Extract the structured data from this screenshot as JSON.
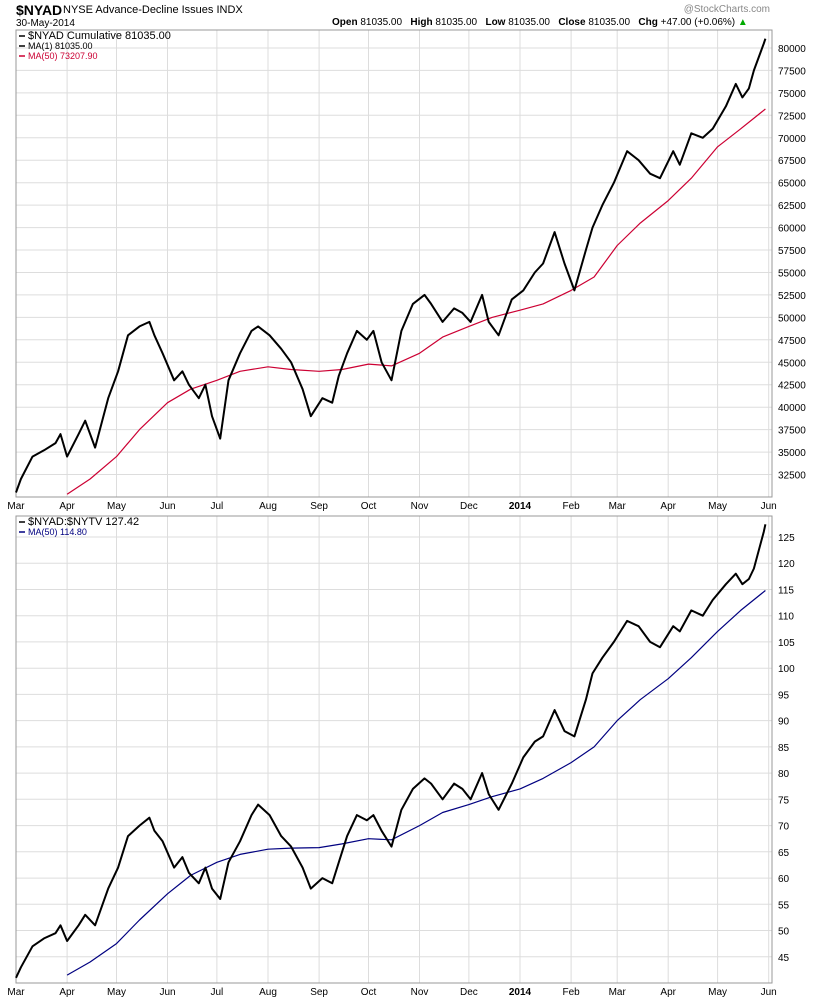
{
  "header": {
    "symbol": "$NYAD",
    "name": "NYSE Advance-Decline Issues",
    "exchange": "INDX",
    "date": "30-May-2014",
    "watermark": "@StockCharts.com",
    "open_label": "Open",
    "open_value": "81035.00",
    "high_label": "High",
    "high_value": "81035.00",
    "low_label": "Low",
    "low_value": "81035.00",
    "close_label": "Close",
    "close_value": "81035.00",
    "chg_label": "Chg",
    "chg_value": "+47.00 (+0.06%)",
    "chg_arrow": "▲"
  },
  "x_axis_labels": [
    "Mar",
    "Apr",
    "May",
    "Jun",
    "Jul",
    "Aug",
    "Sep",
    "Oct",
    "Nov",
    "Dec",
    "2014",
    "Feb",
    "Mar",
    "Apr",
    "May",
    "Jun"
  ],
  "colors": {
    "price": "#000000",
    "ma_top": "#cc0033",
    "ma_bottom": "#000080",
    "grid": "#dddddd",
    "chg_arrow": "#00aa00"
  },
  "chart_data": [
    {
      "type": "line",
      "legend": [
        "$NYAD Cumulative 81035.00",
        "MA(1) 81035.00",
        "MA(50) 73207.90"
      ],
      "ylim": [
        30000,
        82000
      ],
      "y_ticks": [
        32500,
        35000,
        37500,
        40000,
        42500,
        45000,
        47500,
        50000,
        52500,
        55000,
        57500,
        60000,
        62500,
        65000,
        67500,
        70000,
        72500,
        75000,
        77500,
        80000
      ],
      "x_range": [
        "2013-03-01",
        "2014-06-03"
      ],
      "series": [
        {
          "name": "$NYAD Cumulative",
          "points": [
            [
              "2013-03-01",
              30500
            ],
            [
              "2013-03-04",
              32000
            ],
            [
              "2013-03-11",
              34500
            ],
            [
              "2013-03-18",
              35200
            ],
            [
              "2013-03-25",
              36000
            ],
            [
              "2013-03-28",
              37000
            ],
            [
              "2013-04-01",
              34500
            ],
            [
              "2013-04-08",
              37000
            ],
            [
              "2013-04-12",
              38500
            ],
            [
              "2013-04-18",
              35500
            ],
            [
              "2013-04-26",
              41000
            ],
            [
              "2013-05-02",
              44000
            ],
            [
              "2013-05-08",
              48000
            ],
            [
              "2013-05-15",
              49000
            ],
            [
              "2013-05-21",
              49500
            ],
            [
              "2013-05-24",
              48000
            ],
            [
              "2013-05-29",
              46000
            ],
            [
              "2013-06-05",
              43000
            ],
            [
              "2013-06-10",
              44000
            ],
            [
              "2013-06-14",
              42500
            ],
            [
              "2013-06-20",
              41000
            ],
            [
              "2013-06-24",
              42500
            ],
            [
              "2013-06-28",
              39000
            ],
            [
              "2013-07-03",
              36500
            ],
            [
              "2013-07-08",
              43000
            ],
            [
              "2013-07-15",
              46000
            ],
            [
              "2013-07-22",
              48500
            ],
            [
              "2013-07-26",
              49000
            ],
            [
              "2013-08-02",
              48000
            ],
            [
              "2013-08-09",
              46500
            ],
            [
              "2013-08-15",
              45000
            ],
            [
              "2013-08-22",
              42000
            ],
            [
              "2013-08-27",
              39000
            ],
            [
              "2013-09-03",
              41000
            ],
            [
              "2013-09-09",
              40500
            ],
            [
              "2013-09-13",
              43500
            ],
            [
              "2013-09-18",
              46000
            ],
            [
              "2013-09-24",
              48500
            ],
            [
              "2013-09-30",
              47500
            ],
            [
              "2013-10-04",
              48500
            ],
            [
              "2013-10-09",
              45000
            ],
            [
              "2013-10-15",
              43000
            ],
            [
              "2013-10-21",
              48500
            ],
            [
              "2013-10-28",
              51500
            ],
            [
              "2013-11-04",
              52500
            ],
            [
              "2013-11-08",
              51500
            ],
            [
              "2013-11-15",
              49500
            ],
            [
              "2013-11-22",
              51000
            ],
            [
              "2013-11-27",
              50500
            ],
            [
              "2013-12-02",
              49500
            ],
            [
              "2013-12-09",
              52500
            ],
            [
              "2013-12-13",
              49500
            ],
            [
              "2013-12-19",
              48000
            ],
            [
              "2013-12-27",
              52000
            ],
            [
              "2014-01-03",
              53000
            ],
            [
              "2014-01-10",
              55000
            ],
            [
              "2014-01-15",
              56000
            ],
            [
              "2014-01-22",
              59500
            ],
            [
              "2014-01-28",
              56000
            ],
            [
              "2014-02-03",
              53000
            ],
            [
              "2014-02-10",
              57500
            ],
            [
              "2014-02-14",
              60000
            ],
            [
              "2014-02-20",
              62500
            ],
            [
              "2014-02-27",
              65000
            ],
            [
              "2014-03-07",
              68500
            ],
            [
              "2014-03-14",
              67500
            ],
            [
              "2014-03-21",
              66000
            ],
            [
              "2014-03-27",
              65500
            ],
            [
              "2014-04-04",
              68500
            ],
            [
              "2014-04-08",
              67000
            ],
            [
              "2014-04-15",
              70500
            ],
            [
              "2014-04-22",
              70000
            ],
            [
              "2014-04-28",
              71000
            ],
            [
              "2014-05-06",
              73500
            ],
            [
              "2014-05-12",
              76000
            ],
            [
              "2014-05-16",
              74500
            ],
            [
              "2014-05-20",
              75500
            ],
            [
              "2014-05-23",
              77500
            ],
            [
              "2014-05-29",
              80500
            ],
            [
              "2014-05-30",
              81035
            ]
          ]
        },
        {
          "name": "MA(50)",
          "points": [
            [
              "2013-04-01",
              30300
            ],
            [
              "2013-04-15",
              32000
            ],
            [
              "2013-05-01",
              34500
            ],
            [
              "2013-05-15",
              37500
            ],
            [
              "2013-06-01",
              40500
            ],
            [
              "2013-06-15",
              42000
            ],
            [
              "2013-07-01",
              43000
            ],
            [
              "2013-07-15",
              44000
            ],
            [
              "2013-08-01",
              44500
            ],
            [
              "2013-08-15",
              44200
            ],
            [
              "2013-09-01",
              44000
            ],
            [
              "2013-09-15",
              44200
            ],
            [
              "2013-10-01",
              44800
            ],
            [
              "2013-10-15",
              44600
            ],
            [
              "2013-11-01",
              46000
            ],
            [
              "2013-11-15",
              47800
            ],
            [
              "2013-12-01",
              49000
            ],
            [
              "2013-12-15",
              50000
            ],
            [
              "2014-01-01",
              50800
            ],
            [
              "2014-01-15",
              51500
            ],
            [
              "2014-02-01",
              53000
            ],
            [
              "2014-02-15",
              54500
            ],
            [
              "2014-03-01",
              58000
            ],
            [
              "2014-03-15",
              60500
            ],
            [
              "2014-04-01",
              63000
            ],
            [
              "2014-04-15",
              65500
            ],
            [
              "2014-05-01",
              69000
            ],
            [
              "2014-05-15",
              71000
            ],
            [
              "2014-05-30",
              73208
            ]
          ]
        }
      ]
    },
    {
      "type": "line",
      "legend": [
        "$NYAD:$NYTV 127.42",
        "MA(50) 114.80"
      ],
      "ylim": [
        40,
        129
      ],
      "y_ticks": [
        45,
        50,
        55,
        60,
        65,
        70,
        75,
        80,
        85,
        90,
        95,
        100,
        105,
        110,
        115,
        120,
        125
      ],
      "x_range": [
        "2013-03-01",
        "2014-06-03"
      ],
      "series": [
        {
          "name": "$NYAD:$NYTV",
          "points": [
            [
              "2013-03-01",
              41
            ],
            [
              "2013-03-04",
              43
            ],
            [
              "2013-03-11",
              47
            ],
            [
              "2013-03-18",
              48.5
            ],
            [
              "2013-03-25",
              49.5
            ],
            [
              "2013-03-28",
              51
            ],
            [
              "2013-04-01",
              48
            ],
            [
              "2013-04-08",
              51
            ],
            [
              "2013-04-12",
              53
            ],
            [
              "2013-04-18",
              51
            ],
            [
              "2013-04-26",
              58
            ],
            [
              "2013-05-02",
              62
            ],
            [
              "2013-05-08",
              68
            ],
            [
              "2013-05-15",
              70
            ],
            [
              "2013-05-21",
              71.5
            ],
            [
              "2013-05-24",
              69
            ],
            [
              "2013-05-29",
              67
            ],
            [
              "2013-06-05",
              62
            ],
            [
              "2013-06-10",
              64
            ],
            [
              "2013-06-14",
              61
            ],
            [
              "2013-06-20",
              59
            ],
            [
              "2013-06-24",
              62
            ],
            [
              "2013-06-28",
              58
            ],
            [
              "2013-07-03",
              56
            ],
            [
              "2013-07-08",
              63
            ],
            [
              "2013-07-15",
              67
            ],
            [
              "2013-07-22",
              72
            ],
            [
              "2013-07-26",
              74
            ],
            [
              "2013-08-02",
              72
            ],
            [
              "2013-08-09",
              68
            ],
            [
              "2013-08-15",
              66
            ],
            [
              "2013-08-22",
              62
            ],
            [
              "2013-08-27",
              58
            ],
            [
              "2013-09-03",
              60
            ],
            [
              "2013-09-09",
              59
            ],
            [
              "2013-09-13",
              63
            ],
            [
              "2013-09-18",
              68
            ],
            [
              "2013-09-24",
              72
            ],
            [
              "2013-09-30",
              71
            ],
            [
              "2013-10-04",
              72
            ],
            [
              "2013-10-09",
              69
            ],
            [
              "2013-10-15",
              66
            ],
            [
              "2013-10-21",
              73
            ],
            [
              "2013-10-28",
              77
            ],
            [
              "2013-11-04",
              79
            ],
            [
              "2013-11-08",
              78
            ],
            [
              "2013-11-15",
              75
            ],
            [
              "2013-11-22",
              78
            ],
            [
              "2013-11-27",
              77
            ],
            [
              "2013-12-02",
              75
            ],
            [
              "2013-12-09",
              80
            ],
            [
              "2013-12-13",
              76
            ],
            [
              "2013-12-19",
              73
            ],
            [
              "2013-12-27",
              78
            ],
            [
              "2014-01-03",
              83
            ],
            [
              "2014-01-10",
              86
            ],
            [
              "2014-01-15",
              87
            ],
            [
              "2014-01-22",
              92
            ],
            [
              "2014-01-28",
              88
            ],
            [
              "2014-02-03",
              87
            ],
            [
              "2014-02-10",
              94
            ],
            [
              "2014-02-14",
              99
            ],
            [
              "2014-02-20",
              102
            ],
            [
              "2014-02-27",
              105
            ],
            [
              "2014-03-07",
              109
            ],
            [
              "2014-03-14",
              108
            ],
            [
              "2014-03-21",
              105
            ],
            [
              "2014-03-27",
              104
            ],
            [
              "2014-04-04",
              108
            ],
            [
              "2014-04-08",
              107
            ],
            [
              "2014-04-15",
              111
            ],
            [
              "2014-04-22",
              110
            ],
            [
              "2014-04-28",
              113
            ],
            [
              "2014-05-06",
              116
            ],
            [
              "2014-05-12",
              118
            ],
            [
              "2014-05-16",
              116
            ],
            [
              "2014-05-20",
              117
            ],
            [
              "2014-05-23",
              119
            ],
            [
              "2014-05-29",
              126
            ],
            [
              "2014-05-30",
              127.42
            ]
          ]
        },
        {
          "name": "MA(50)",
          "points": [
            [
              "2013-04-01",
              41.5
            ],
            [
              "2013-04-15",
              44
            ],
            [
              "2013-05-01",
              47.5
            ],
            [
              "2013-05-15",
              52
            ],
            [
              "2013-06-01",
              57
            ],
            [
              "2013-06-15",
              60.5
            ],
            [
              "2013-07-01",
              63
            ],
            [
              "2013-07-15",
              64.5
            ],
            [
              "2013-08-01",
              65.5
            ],
            [
              "2013-08-15",
              65.7
            ],
            [
              "2013-09-01",
              65.8
            ],
            [
              "2013-09-15",
              66.5
            ],
            [
              "2013-10-01",
              67.5
            ],
            [
              "2013-10-15",
              67.3
            ],
            [
              "2013-11-01",
              70
            ],
            [
              "2013-11-15",
              72.5
            ],
            [
              "2013-12-01",
              74
            ],
            [
              "2013-12-15",
              75.5
            ],
            [
              "2014-01-01",
              77
            ],
            [
              "2014-01-15",
              79
            ],
            [
              "2014-02-01",
              82
            ],
            [
              "2014-02-15",
              85
            ],
            [
              "2014-03-01",
              90
            ],
            [
              "2014-03-15",
              94
            ],
            [
              "2014-04-01",
              98
            ],
            [
              "2014-04-15",
              102
            ],
            [
              "2014-05-01",
              107
            ],
            [
              "2014-05-15",
              111
            ],
            [
              "2014-05-30",
              114.8
            ]
          ]
        }
      ]
    }
  ]
}
